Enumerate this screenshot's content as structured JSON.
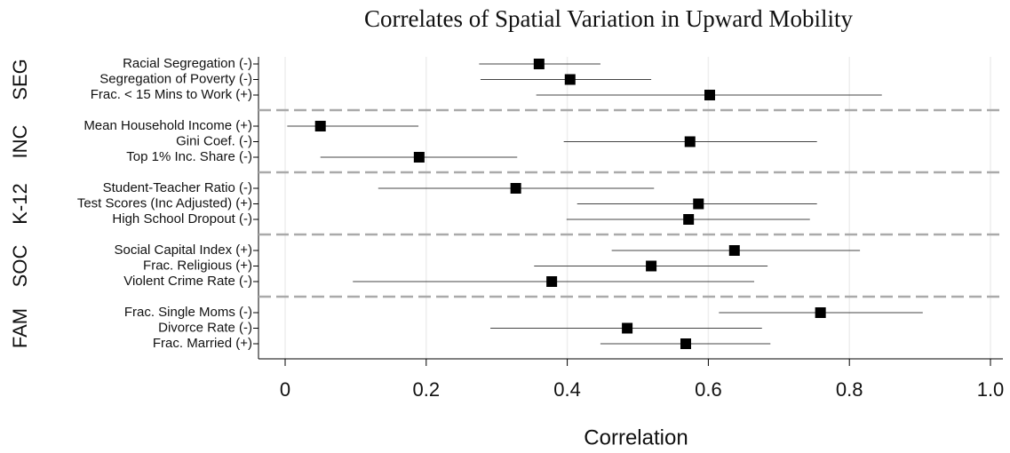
{
  "chart_data": {
    "type": "dot",
    "title": "Correlates of Spatial Variation in Upward Mobility",
    "x_label": "Correlation",
    "xlim": [
      0,
      1
    ],
    "xticks": [
      0,
      0.2,
      0.4,
      0.6,
      0.8,
      {
        "value": 1,
        "label": "1.0"
      }
    ],
    "grid": true,
    "color": "#000000",
    "groups": [
      {
        "label": "SEG",
        "rows": [
          {
            "label": "Racial Segregation (-)",
            "value": 0.36,
            "lower": 0.275,
            "upper": 0.447
          },
          {
            "label": "Segregation of Poverty (-)",
            "value": 0.404,
            "lower": 0.277,
            "upper": 0.519
          },
          {
            "label": "Frac. < 15 Mins to Work (+)",
            "value": 0.602,
            "lower": 0.356,
            "upper": 0.846
          }
        ]
      },
      {
        "label": "INC",
        "rows": [
          {
            "label": "Mean Household Income (+)",
            "value": 0.05,
            "lower": 0.003,
            "upper": 0.189
          },
          {
            "label": "Gini Coef. (-)",
            "value": 0.574,
            "lower": 0.395,
            "upper": 0.754
          },
          {
            "label": "Top 1% Inc. Share (-)",
            "value": 0.19,
            "lower": 0.05,
            "upper": 0.329
          }
        ]
      },
      {
        "label": "K-12",
        "rows": [
          {
            "label": "Student-Teacher Ratio (-)",
            "value": 0.327,
            "lower": 0.132,
            "upper": 0.523
          },
          {
            "label": "Test Scores (Inc Adjusted) (+)",
            "value": 0.586,
            "lower": 0.414,
            "upper": 0.754
          },
          {
            "label": "High School Dropout (-)",
            "value": 0.572,
            "lower": 0.399,
            "upper": 0.744
          }
        ]
      },
      {
        "label": "SOC",
        "rows": [
          {
            "label": "Social Capital Index (+)",
            "value": 0.637,
            "lower": 0.463,
            "upper": 0.815
          },
          {
            "label": "Frac. Religious (+)",
            "value": 0.519,
            "lower": 0.353,
            "upper": 0.684
          },
          {
            "label": "Violent Crime Rate (-)",
            "value": 0.378,
            "lower": 0.096,
            "upper": 0.665
          }
        ]
      },
      {
        "label": "FAM",
        "rows": [
          {
            "label": "Frac. Single Moms (-)",
            "value": 0.759,
            "lower": 0.615,
            "upper": 0.904
          },
          {
            "label": "Divorce Rate (-)",
            "value": 0.485,
            "lower": 0.291,
            "upper": 0.676
          },
          {
            "label": "Frac. Married (+)",
            "value": 0.568,
            "lower": 0.447,
            "upper": 0.688
          }
        ]
      }
    ]
  }
}
